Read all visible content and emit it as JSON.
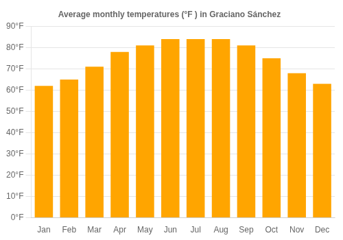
{
  "chart_data": {
    "type": "bar",
    "title": "Average monthly temperatures (°F ) in Graciano Sánchez",
    "categories": [
      "Jan",
      "Feb",
      "Mar",
      "Apr",
      "May",
      "Jun",
      "Jul",
      "Aug",
      "Sep",
      "Oct",
      "Nov",
      "Dec"
    ],
    "values": [
      62,
      65,
      71,
      78,
      81,
      84,
      84,
      84,
      81,
      75,
      68,
      63
    ],
    "color": "#FFA500",
    "ylim": [
      0,
      90
    ],
    "yticks": [
      {
        "value": 0,
        "label": "0°F"
      },
      {
        "value": 10,
        "label": "10°F"
      },
      {
        "value": 20,
        "label": "20°F"
      },
      {
        "value": 30,
        "label": "30°F"
      },
      {
        "value": 40,
        "label": "40°F"
      },
      {
        "value": 50,
        "label": "50°F"
      },
      {
        "value": 60,
        "label": "60°F"
      },
      {
        "value": 70,
        "label": "70°F"
      },
      {
        "value": 80,
        "label": "80°F"
      },
      {
        "value": 90,
        "label": "90°F"
      }
    ],
    "grid": true
  }
}
